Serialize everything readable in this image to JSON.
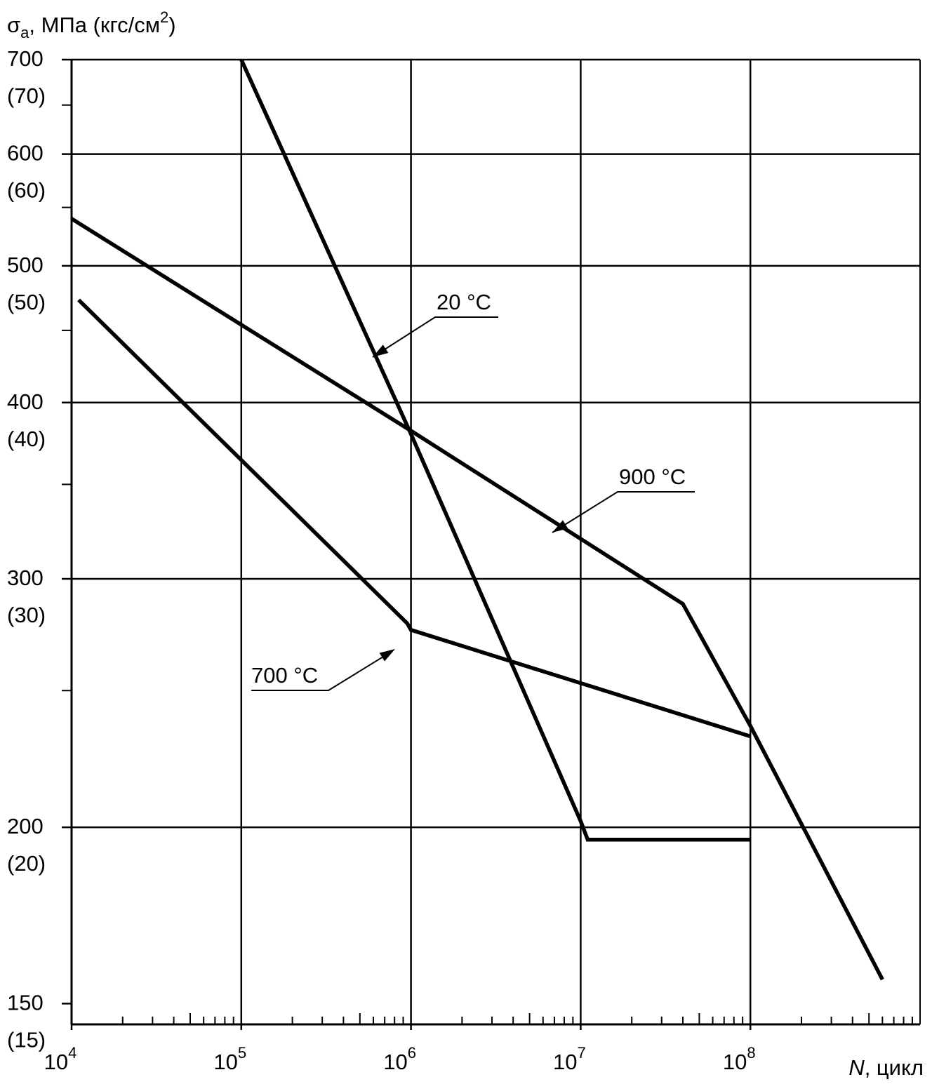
{
  "chart_data": {
    "type": "line",
    "x_scale": "log",
    "y_scale": "log",
    "xlim": [
      10000,
      1000000000
    ],
    "ylim": [
      145,
      700
    ],
    "grid": true,
    "xlabel": {
      "italic": "N",
      "rest": ", цикл"
    },
    "ylabel": {
      "symbol": "σ",
      "sub": "a",
      "rest": ", МПа (кгс/см",
      "sup": "2",
      "close": ")"
    },
    "x_ticks": [
      {
        "value": 10000,
        "base": "10",
        "exp": "4"
      },
      {
        "value": 100000,
        "base": "10",
        "exp": "5"
      },
      {
        "value": 1000000,
        "base": "10",
        "exp": "6"
      },
      {
        "value": 10000000,
        "base": "10",
        "exp": "7"
      },
      {
        "value": 100000000,
        "base": "10",
        "exp": "8"
      }
    ],
    "y_ticks": [
      {
        "value": 700,
        "label": "700",
        "alt": "(70)"
      },
      {
        "value": 600,
        "label": "600",
        "alt": "(60)"
      },
      {
        "value": 500,
        "label": "500",
        "alt": "(50)"
      },
      {
        "value": 400,
        "label": "400",
        "alt": "(40)"
      },
      {
        "value": 300,
        "label": "300",
        "alt": "(30)"
      },
      {
        "value": 200,
        "label": "200",
        "alt": "(20)"
      },
      {
        "value": 150,
        "label": "150",
        "alt": "(15)"
      }
    ],
    "y_gridlines": [
      700,
      600,
      500,
      400,
      300,
      200
    ],
    "y_minor_ticks": [
      650,
      550,
      450,
      350,
      250
    ],
    "series": [
      {
        "name": "20 °C",
        "label_text": "20 °C",
        "x": [
          100000,
          1000000,
          10000000,
          11000000,
          100000000
        ],
        "y": [
          700,
          380,
          202,
          196,
          196
        ]
      },
      {
        "name": "700 °C",
        "label_text": "700 °C",
        "x": [
          11000,
          950000,
          1000000,
          100000000
        ],
        "y": [
          473,
          279,
          276,
          232
        ]
      },
      {
        "name": "900 °C",
        "label_text": "900 °C",
        "x": [
          10000,
          1000000,
          40000000,
          100000000,
          600000000
        ],
        "y": [
          540,
          382,
          288,
          236,
          156
        ]
      }
    ]
  }
}
